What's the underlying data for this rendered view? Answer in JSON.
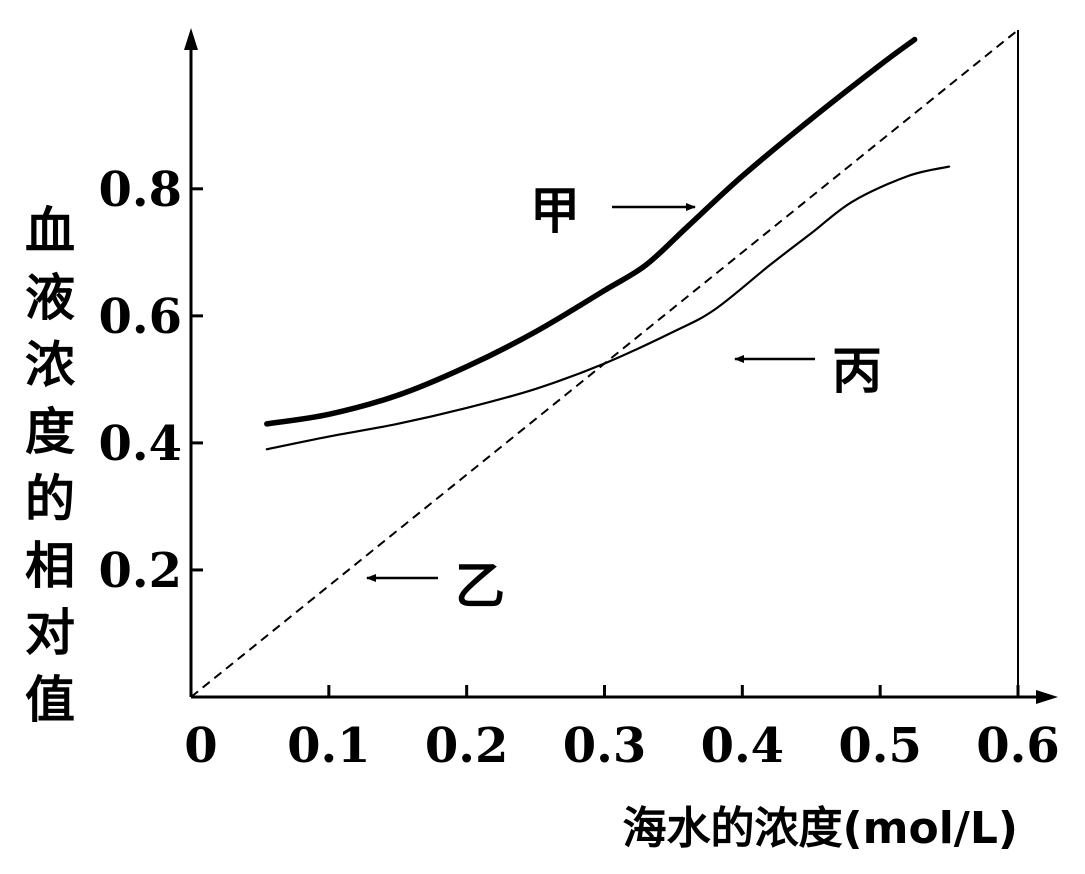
{
  "chart_data": {
    "type": "line",
    "xlabel": "海水的浓度(mol/L)",
    "ylabel": "血液浓度的相对值",
    "xlim": [
      0,
      0.6
    ],
    "ylim": [
      0,
      1.05
    ],
    "x_ticks": [
      "0",
      "0.1",
      "0.2",
      "0.3",
      "0.4",
      "0.5",
      "0.6"
    ],
    "y_ticks": [
      "0.2",
      "0.4",
      "0.6",
      "0.8"
    ],
    "grid": false,
    "series": [
      {
        "name": "甲",
        "style": "thick-solid",
        "points": [
          [
            0.055,
            0.43
          ],
          [
            0.1,
            0.445
          ],
          [
            0.15,
            0.475
          ],
          [
            0.2,
            0.52
          ],
          [
            0.25,
            0.575
          ],
          [
            0.3,
            0.64
          ],
          [
            0.33,
            0.68
          ],
          [
            0.36,
            0.74
          ],
          [
            0.4,
            0.82
          ],
          [
            0.45,
            0.91
          ],
          [
            0.5,
            0.995
          ],
          [
            0.525,
            1.035
          ]
        ]
      },
      {
        "name": "乙",
        "style": "dashed",
        "points": [
          [
            0,
            0
          ],
          [
            0.6,
            1.05
          ]
        ]
      },
      {
        "name": "丙",
        "style": "thin-solid",
        "points": [
          [
            0.055,
            0.39
          ],
          [
            0.1,
            0.41
          ],
          [
            0.15,
            0.43
          ],
          [
            0.2,
            0.455
          ],
          [
            0.25,
            0.485
          ],
          [
            0.3,
            0.525
          ],
          [
            0.35,
            0.575
          ],
          [
            0.38,
            0.61
          ],
          [
            0.42,
            0.68
          ],
          [
            0.45,
            0.73
          ],
          [
            0.48,
            0.78
          ],
          [
            0.52,
            0.82
          ],
          [
            0.55,
            0.835
          ]
        ]
      }
    ]
  }
}
